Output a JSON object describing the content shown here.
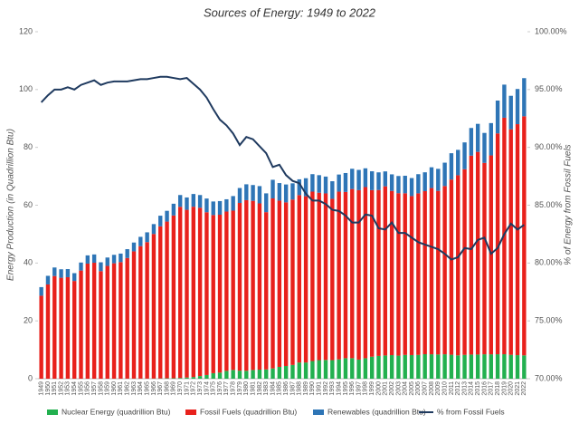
{
  "chart_data": {
    "type": "bar",
    "title": "Sources of Energy: 1949 to 2022",
    "y_label": "Energy Production (in Quadrillion Btu)",
    "y2_label": "% of Energy from Fossil Fuels",
    "stacked": true,
    "categories": [
      "1949",
      "1950",
      "1951",
      "1952",
      "1953",
      "1954",
      "1955",
      "1956",
      "1957",
      "1958",
      "1959",
      "1960",
      "1961",
      "1962",
      "1963",
      "1964",
      "1965",
      "1966",
      "1967",
      "1968",
      "1969",
      "1970",
      "1971",
      "1972",
      "1973",
      "1974",
      "1975",
      "1976",
      "1977",
      "1978",
      "1979",
      "1980",
      "1981",
      "1982",
      "1983",
      "1984",
      "1985",
      "1986",
      "1987",
      "1988",
      "1989",
      "1990",
      "1991",
      "1992",
      "1993",
      "1994",
      "1995",
      "1996",
      "1997",
      "1998",
      "1999",
      "2000",
      "2001",
      "2002",
      "2003",
      "2004",
      "2005",
      "2006",
      "2007",
      "2008",
      "2009",
      "2010",
      "2011",
      "2012",
      "2013",
      "2014",
      "2015",
      "2016",
      "2017",
      "2018",
      "2019",
      "2020",
      "2021",
      "2022"
    ],
    "series": [
      {
        "name": "Nuclear Energy (quadrillion Btu)",
        "color": "#22b04f",
        "values": [
          0,
          0,
          0,
          0,
          0,
          0,
          0,
          0,
          0,
          0,
          0,
          0.01,
          0.02,
          0.03,
          0.04,
          0.04,
          0.04,
          0.06,
          0.09,
          0.14,
          0.15,
          0.24,
          0.41,
          0.58,
          0.91,
          1.27,
          1.9,
          2.11,
          2.7,
          3.02,
          2.78,
          2.74,
          3.01,
          3.13,
          3.2,
          3.55,
          4.08,
          4.38,
          4.75,
          5.59,
          5.6,
          6.1,
          6.42,
          6.48,
          6.41,
          6.69,
          7.08,
          7.09,
          6.6,
          7.07,
          7.61,
          7.86,
          8.03,
          8.14,
          7.96,
          8.22,
          8.16,
          8.21,
          8.46,
          8.43,
          8.36,
          8.43,
          8.27,
          8.06,
          8.24,
          8.34,
          8.34,
          8.43,
          8.42,
          8.44,
          8.45,
          8.25,
          8.13,
          8.06
        ]
      },
      {
        "name": "Fossil Fuels (quadrillion Btu)",
        "color": "#e8211c",
        "values": [
          28.7,
          32.6,
          35.5,
          34.9,
          35.1,
          33.8,
          37.4,
          39.8,
          40.1,
          37.2,
          39.0,
          39.9,
          40.3,
          41.7,
          44.0,
          45.8,
          47.2,
          50.0,
          52.6,
          54.2,
          56.3,
          59.2,
          58.0,
          58.9,
          58.2,
          56.3,
          54.7,
          54.6,
          55.1,
          55.1,
          58.0,
          59.0,
          58.5,
          57.5,
          54.4,
          58.8,
          57.5,
          56.6,
          57.2,
          57.9,
          57.5,
          58.6,
          57.9,
          57.6,
          55.8,
          58.0,
          57.5,
          58.5,
          58.6,
          59.2,
          57.6,
          57.4,
          58.5,
          56.8,
          56.2,
          55.9,
          55.0,
          55.9,
          56.4,
          57.5,
          56.6,
          58.2,
          60.6,
          62.3,
          64.2,
          68.8,
          70.1,
          66.2,
          68.8,
          76.4,
          81.8,
          78.0,
          79.9,
          82.7
        ]
      },
      {
        "name": "Renewables (quadrillion Btu)",
        "color": "#2e75b6",
        "values": [
          2.97,
          2.98,
          2.96,
          2.94,
          2.81,
          2.7,
          2.78,
          2.85,
          2.87,
          3.05,
          2.91,
          2.93,
          2.95,
          3.07,
          3.05,
          3.22,
          3.38,
          3.41,
          3.68,
          3.72,
          4.06,
          4.08,
          4.27,
          4.4,
          4.41,
          4.74,
          4.69,
          4.72,
          4.25,
          5.04,
          5.17,
          5.49,
          5.47,
          5.98,
          6.5,
          6.44,
          6.08,
          6.19,
          5.62,
          5.46,
          6.23,
          6.04,
          6.07,
          5.82,
          6.08,
          5.92,
          6.55,
          7.01,
          7.01,
          6.49,
          6.52,
          6.1,
          5.16,
          5.73,
          5.94,
          6.07,
          6.23,
          6.62,
          6.52,
          7.19,
          7.62,
          8.08,
          9.11,
          8.78,
          9.28,
          9.57,
          9.7,
          10.37,
          11.18,
          11.35,
          11.45,
          11.59,
          12.16,
          13.18
        ]
      },
      {
        "name": "% from Fossil Fuels",
        "color": "#1f3a5f",
        "type": "line",
        "axis": "y2",
        "values": [
          93.9,
          94.5,
          95.0,
          95.0,
          95.2,
          95.0,
          95.4,
          95.6,
          95.8,
          95.4,
          95.6,
          95.7,
          95.7,
          95.7,
          95.8,
          95.9,
          95.9,
          96.0,
          96.1,
          96.1,
          96.0,
          95.9,
          96.0,
          95.5,
          95.0,
          94.3,
          93.3,
          92.4,
          91.9,
          91.2,
          90.2,
          90.9,
          90.7,
          90.1,
          89.5,
          88.3,
          88.5,
          87.6,
          87.1,
          86.9,
          86.0,
          85.4,
          85.4,
          85.1,
          84.6,
          84.5,
          84.1,
          83.5,
          83.5,
          84.2,
          84.1,
          83.0,
          82.9,
          83.5,
          82.6,
          82.6,
          82.2,
          81.8,
          81.6,
          81.4,
          81.2,
          80.8,
          80.3,
          80.5,
          81.3,
          81.2,
          82.0,
          82.2,
          80.8,
          81.3,
          82.5,
          83.4,
          82.9,
          83.3
        ]
      }
    ],
    "ylim": [
      0,
      120
    ],
    "yticks": [
      0,
      20,
      40,
      60,
      80,
      100,
      120
    ],
    "y2lim": [
      70,
      100
    ],
    "y2ticks": [
      {
        "value": 70,
        "label": "70.00%"
      },
      {
        "value": 75,
        "label": "75.00%"
      },
      {
        "value": 80,
        "label": "80.00%"
      },
      {
        "value": 85,
        "label": "85.00%"
      },
      {
        "value": 90,
        "label": "90.00%"
      },
      {
        "value": 95,
        "label": "95.00%"
      },
      {
        "value": 100,
        "label": "100.00%"
      }
    ],
    "legend": "bottom"
  }
}
